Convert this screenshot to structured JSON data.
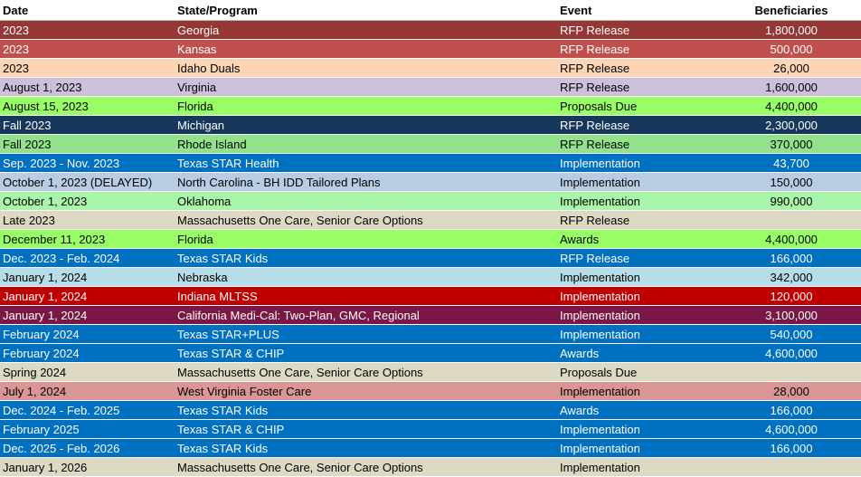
{
  "headers": {
    "date": "Date",
    "state": "State/Program",
    "event": "Event",
    "beneficiaries": "Beneficiaries"
  },
  "rows": [
    {
      "date": "2023",
      "state": "Georgia",
      "event": "RFP Release",
      "beneficiaries": "1,800,000",
      "bg": "#953735",
      "fg": "#ffffff"
    },
    {
      "date": "2023",
      "state": "Kansas",
      "event": "RFP Release",
      "beneficiaries": "500,000",
      "bg": "#c0504d",
      "fg": "#ffffff"
    },
    {
      "date": "2023",
      "state": "Idaho Duals",
      "event": "RFP Release",
      "beneficiaries": "26,000",
      "bg": "#fcd5b4",
      "fg": "#000000"
    },
    {
      "date": "August 1, 2023",
      "state": "Virginia",
      "event": "RFP Release",
      "beneficiaries": "1,600,000",
      "bg": "#ccc0da",
      "fg": "#000000"
    },
    {
      "date": "August 15, 2023",
      "state": "Florida",
      "event": "Proposals Due",
      "beneficiaries": "4,400,000",
      "bg": "#99ff66",
      "fg": "#000000"
    },
    {
      "date": "Fall 2023",
      "state": "Michigan",
      "event": "RFP Release",
      "beneficiaries": "2,300,000",
      "bg": "#17375d",
      "fg": "#ffffff"
    },
    {
      "date": "Fall 2023",
      "state": "Rhode Island",
      "event": "RFP Release",
      "beneficiaries": "370,000",
      "bg": "#92e28c",
      "fg": "#000000"
    },
    {
      "date": "Sep. 2023 - Nov. 2023",
      "state": "Texas STAR Health",
      "event": "Implementation",
      "beneficiaries": "43,700",
      "bg": "#0070c0",
      "fg": "#ffffff"
    },
    {
      "date": "October 1, 2023 (DELAYED)",
      "state": "North Carolina -  BH IDD Tailored Plans",
      "event": "Implementation",
      "beneficiaries": "150,000",
      "bg": "#b8cce4",
      "fg": "#000000"
    },
    {
      "date": "October 1, 2023",
      "state": "Oklahoma",
      "event": "Implementation",
      "beneficiaries": "990,000",
      "bg": "#a9f5a9",
      "fg": "#000000"
    },
    {
      "date": "Late 2023",
      "state": "Massachusetts One Care, Senior Care Options",
      "event": "RFP Release",
      "beneficiaries": "",
      "bg": "#ddd9c3",
      "fg": "#000000"
    },
    {
      "date": "December 11, 2023",
      "state": "Florida",
      "event": "Awards",
      "beneficiaries": "4,400,000",
      "bg": "#99ff66",
      "fg": "#000000"
    },
    {
      "date": "Dec. 2023 - Feb. 2024",
      "state": "Texas STAR Kids",
      "event": "RFP Release",
      "beneficiaries": "166,000",
      "bg": "#0070c0",
      "fg": "#ffffff"
    },
    {
      "date": "January 1, 2024",
      "state": "Nebraska",
      "event": "Implementation",
      "beneficiaries": "342,000",
      "bg": "#b7dee8",
      "fg": "#000000"
    },
    {
      "date": "January 1, 2024",
      "state": "Indiana MLTSS",
      "event": "Implementation",
      "beneficiaries": "120,000",
      "bg": "#c00000",
      "fg": "#ffffff"
    },
    {
      "date": "January 1, 2024",
      "state": "California Medi-Cal: Two-Plan, GMC, Regional",
      "event": "Implementation",
      "beneficiaries": "3,100,000",
      "bg": "#7b1747",
      "fg": "#ffffff"
    },
    {
      "date": "February 2024",
      "state": "Texas STAR+PLUS",
      "event": "Implementation",
      "beneficiaries": "540,000",
      "bg": "#0070c0",
      "fg": "#ffffff"
    },
    {
      "date": "February 2024",
      "state": "Texas STAR & CHIP",
      "event": "Awards",
      "beneficiaries": "4,600,000",
      "bg": "#0070c0",
      "fg": "#ffffff"
    },
    {
      "date": "Spring 2024",
      "state": "Massachusetts One Care, Senior Care Options",
      "event": "Proposals Due",
      "beneficiaries": "",
      "bg": "#ddd9c3",
      "fg": "#000000"
    },
    {
      "date": "July 1, 2024",
      "state": "West Virginia Foster Care",
      "event": "Implementation",
      "beneficiaries": "28,000",
      "bg": "#da9694",
      "fg": "#000000"
    },
    {
      "date": "Dec. 2024 - Feb. 2025",
      "state": "Texas STAR Kids",
      "event": "Awards",
      "beneficiaries": "166,000",
      "bg": "#0070c0",
      "fg": "#ffffff"
    },
    {
      "date": "February 2025",
      "state": "Texas STAR & CHIP",
      "event": "Implementation",
      "beneficiaries": "4,600,000",
      "bg": "#0070c0",
      "fg": "#ffffff"
    },
    {
      "date": "Dec. 2025 - Feb. 2026",
      "state": "Texas STAR Kids",
      "event": "Implementation",
      "beneficiaries": "166,000",
      "bg": "#0070c0",
      "fg": "#ffffff"
    },
    {
      "date": "January 1, 2026",
      "state": "Massachusetts One Care, Senior Care Options",
      "event": "Implementation",
      "beneficiaries": "",
      "bg": "#ddd9c3",
      "fg": "#000000"
    }
  ]
}
